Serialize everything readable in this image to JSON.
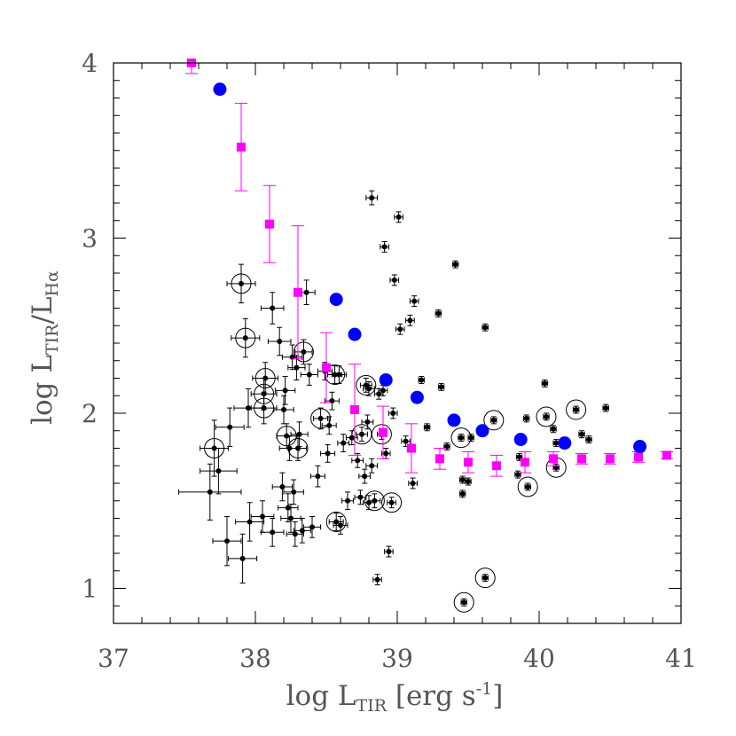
{
  "chart_data": {
    "type": "scatter",
    "title": "",
    "xlabel": {
      "main": "log L",
      "sub": "TIR",
      "suffix": " [erg s",
      "sup": "-1",
      "close": "]"
    },
    "ylabel": {
      "main": "log L",
      "sub1": "TIR",
      "mid": "/L",
      "sub2": "Hα"
    },
    "xlim": [
      37.0,
      41.0
    ],
    "ylim": [
      0.8,
      4.0
    ],
    "xticks": [
      37,
      38,
      39,
      40,
      41
    ],
    "yticks": [
      1,
      2,
      3,
      4
    ],
    "xtick_labels": [
      "37",
      "38",
      "39",
      "40",
      "41"
    ],
    "ytick_labels": [
      "1",
      "2",
      "3",
      "4"
    ],
    "grid": false,
    "colors": {
      "regions": "#000000",
      "binned": "#ff00ff",
      "model": "#0000ff"
    },
    "series": [
      {
        "kind": "regions",
        "marker": "small black dot with x/y error bars",
        "points": [
          {
            "x": 37.68,
            "y": 1.55,
            "xerr": 0.22,
            "yerr": 0.16
          },
          {
            "x": 37.71,
            "y": 1.8,
            "xerr": 0.1,
            "yerr": 0.16,
            "circled": true
          },
          {
            "x": 37.74,
            "y": 1.67,
            "xerr": 0.13,
            "yerr": 0.13
          },
          {
            "x": 37.8,
            "y": 1.27,
            "xerr": 0.1,
            "yerr": 0.14
          },
          {
            "x": 37.82,
            "y": 1.92,
            "xerr": 0.1,
            "yerr": 0.11
          },
          {
            "x": 37.91,
            "y": 1.17,
            "xerr": 0.1,
            "yerr": 0.14
          },
          {
            "x": 37.96,
            "y": 1.38,
            "xerr": 0.1,
            "yerr": 0.11
          },
          {
            "x": 37.95,
            "y": 2.03,
            "xerr": 0.1,
            "yerr": 0.11
          },
          {
            "x": 37.9,
            "y": 2.74,
            "xerr": 0.1,
            "yerr": 0.11,
            "circled": true
          },
          {
            "x": 37.93,
            "y": 2.43,
            "xerr": 0.1,
            "yerr": 0.11,
            "circled": true
          },
          {
            "x": 38.05,
            "y": 1.41,
            "xerr": 0.08,
            "yerr": 0.09
          },
          {
            "x": 38.06,
            "y": 2.03,
            "xerr": 0.09,
            "yerr": 0.09,
            "circled": true
          },
          {
            "x": 38.06,
            "y": 2.11,
            "xerr": 0.09,
            "yerr": 0.09,
            "circled": true
          },
          {
            "x": 38.07,
            "y": 2.2,
            "xerr": 0.09,
            "yerr": 0.09,
            "circled": true
          },
          {
            "x": 38.12,
            "y": 2.6,
            "xerr": 0.08,
            "yerr": 0.09
          },
          {
            "x": 38.12,
            "y": 1.32,
            "xerr": 0.08,
            "yerr": 0.08
          },
          {
            "x": 38.17,
            "y": 2.41,
            "xerr": 0.08,
            "yerr": 0.08
          },
          {
            "x": 38.19,
            "y": 1.58,
            "xerr": 0.07,
            "yerr": 0.08
          },
          {
            "x": 38.2,
            "y": 2.02,
            "xerr": 0.07,
            "yerr": 0.08
          },
          {
            "x": 38.21,
            "y": 2.13,
            "xerr": 0.07,
            "yerr": 0.08
          },
          {
            "x": 38.22,
            "y": 1.87,
            "xerr": 0.07,
            "yerr": 0.07,
            "circled": true
          },
          {
            "x": 38.23,
            "y": 1.46,
            "xerr": 0.07,
            "yerr": 0.08
          },
          {
            "x": 38.24,
            "y": 1.8,
            "xerr": 0.07,
            "yerr": 0.07
          },
          {
            "x": 38.25,
            "y": 1.4,
            "xerr": 0.07,
            "yerr": 0.08
          },
          {
            "x": 38.26,
            "y": 2.32,
            "xerr": 0.07,
            "yerr": 0.07
          },
          {
            "x": 38.27,
            "y": 1.55,
            "xerr": 0.07,
            "yerr": 0.07
          },
          {
            "x": 38.28,
            "y": 1.31,
            "xerr": 0.06,
            "yerr": 0.07
          },
          {
            "x": 38.29,
            "y": 2.26,
            "xerr": 0.06,
            "yerr": 0.07
          },
          {
            "x": 38.3,
            "y": 1.8,
            "xerr": 0.06,
            "yerr": 0.07,
            "circled": true
          },
          {
            "x": 38.31,
            "y": 1.88,
            "xerr": 0.06,
            "yerr": 0.07
          },
          {
            "x": 38.33,
            "y": 1.33,
            "xerr": 0.06,
            "yerr": 0.07
          },
          {
            "x": 38.34,
            "y": 2.35,
            "xerr": 0.06,
            "yerr": 0.07,
            "circled": true
          },
          {
            "x": 38.36,
            "y": 2.69,
            "xerr": 0.06,
            "yerr": 0.07
          },
          {
            "x": 38.38,
            "y": 2.22,
            "xerr": 0.06,
            "yerr": 0.06
          },
          {
            "x": 38.4,
            "y": 1.35,
            "xerr": 0.06,
            "yerr": 0.06
          },
          {
            "x": 38.44,
            "y": 1.64,
            "xerr": 0.05,
            "yerr": 0.06
          },
          {
            "x": 38.46,
            "y": 1.97,
            "xerr": 0.05,
            "yerr": 0.06,
            "circled": true
          },
          {
            "x": 38.49,
            "y": 2.24,
            "xerr": 0.05,
            "yerr": 0.05
          },
          {
            "x": 38.51,
            "y": 1.77,
            "xerr": 0.05,
            "yerr": 0.05
          },
          {
            "x": 38.52,
            "y": 1.93,
            "xerr": 0.05,
            "yerr": 0.05
          },
          {
            "x": 38.54,
            "y": 2.07,
            "xerr": 0.05,
            "yerr": 0.05
          },
          {
            "x": 38.56,
            "y": 2.22,
            "xerr": 0.05,
            "yerr": 0.05,
            "circled": true
          },
          {
            "x": 38.57,
            "y": 1.38,
            "xerr": 0.05,
            "yerr": 0.05,
            "circled": true
          },
          {
            "x": 38.59,
            "y": 2.22,
            "xerr": 0.05,
            "yerr": 0.05
          },
          {
            "x": 38.6,
            "y": 1.36,
            "xerr": 0.05,
            "yerr": 0.05
          },
          {
            "x": 38.62,
            "y": 1.83,
            "xerr": 0.04,
            "yerr": 0.05
          },
          {
            "x": 38.65,
            "y": 1.5,
            "xerr": 0.04,
            "yerr": 0.05
          },
          {
            "x": 38.68,
            "y": 1.86,
            "xerr": 0.04,
            "yerr": 0.04
          },
          {
            "x": 38.72,
            "y": 1.73,
            "xerr": 0.04,
            "yerr": 0.04
          },
          {
            "x": 38.74,
            "y": 1.52,
            "xerr": 0.04,
            "yerr": 0.04
          },
          {
            "x": 38.75,
            "y": 1.88,
            "xerr": 0.04,
            "yerr": 0.04,
            "circled": true
          },
          {
            "x": 38.77,
            "y": 1.64,
            "xerr": 0.04,
            "yerr": 0.04
          },
          {
            "x": 38.78,
            "y": 2.16,
            "xerr": 0.04,
            "yerr": 0.04,
            "circled": true
          },
          {
            "x": 38.79,
            "y": 1.95,
            "xerr": 0.04,
            "yerr": 0.04
          },
          {
            "x": 38.8,
            "y": 2.14,
            "xerr": 0.04,
            "yerr": 0.04
          },
          {
            "x": 38.8,
            "y": 1.49,
            "xerr": 0.04,
            "yerr": 0.04
          },
          {
            "x": 38.82,
            "y": 1.7,
            "xerr": 0.04,
            "yerr": 0.04
          },
          {
            "x": 38.82,
            "y": 3.23,
            "xerr": 0.04,
            "yerr": 0.04
          },
          {
            "x": 38.84,
            "y": 1.5,
            "xerr": 0.04,
            "yerr": 0.04,
            "circled": true
          },
          {
            "x": 38.86,
            "y": 1.05,
            "xerr": 0.03,
            "yerr": 0.03
          },
          {
            "x": 38.87,
            "y": 2.11,
            "xerr": 0.03,
            "yerr": 0.03
          },
          {
            "x": 38.89,
            "y": 1.88,
            "xerr": 0.03,
            "yerr": 0.03,
            "circled": true
          },
          {
            "x": 38.9,
            "y": 2.13,
            "xerr": 0.03,
            "yerr": 0.03
          },
          {
            "x": 38.91,
            "y": 2.95,
            "xerr": 0.03,
            "yerr": 0.03
          },
          {
            "x": 38.92,
            "y": 1.77,
            "xerr": 0.03,
            "yerr": 0.03
          },
          {
            "x": 38.94,
            "y": 1.21,
            "xerr": 0.03,
            "yerr": 0.03
          },
          {
            "x": 38.96,
            "y": 1.49,
            "xerr": 0.03,
            "yerr": 0.03,
            "circled": true
          },
          {
            "x": 38.97,
            "y": 2.0,
            "xerr": 0.03,
            "yerr": 0.03
          },
          {
            "x": 38.98,
            "y": 2.76,
            "xerr": 0.03,
            "yerr": 0.03
          },
          {
            "x": 39.01,
            "y": 3.12,
            "xerr": 0.03,
            "yerr": 0.03
          },
          {
            "x": 39.02,
            "y": 2.48,
            "xerr": 0.03,
            "yerr": 0.03
          },
          {
            "x": 39.06,
            "y": 1.84,
            "xerr": 0.03,
            "yerr": 0.03
          },
          {
            "x": 39.09,
            "y": 2.53,
            "xerr": 0.03,
            "yerr": 0.03
          },
          {
            "x": 39.11,
            "y": 1.6,
            "xerr": 0.03,
            "yerr": 0.03
          },
          {
            "x": 39.12,
            "y": 2.64,
            "xerr": 0.03,
            "yerr": 0.03
          },
          {
            "x": 39.17,
            "y": 2.19,
            "xerr": 0.02,
            "yerr": 0.02
          },
          {
            "x": 39.21,
            "y": 1.92,
            "xerr": 0.02,
            "yerr": 0.02
          },
          {
            "x": 39.29,
            "y": 2.57,
            "xerr": 0.02,
            "yerr": 0.02
          },
          {
            "x": 39.31,
            "y": 2.15,
            "xerr": 0.02,
            "yerr": 0.02
          },
          {
            "x": 39.35,
            "y": 1.81,
            "xerr": 0.02,
            "yerr": 0.02
          },
          {
            "x": 39.41,
            "y": 2.85,
            "xerr": 0.02,
            "yerr": 0.02
          },
          {
            "x": 39.45,
            "y": 1.86,
            "xerr": 0.02,
            "yerr": 0.02,
            "circled": true
          },
          {
            "x": 39.46,
            "y": 1.54,
            "xerr": 0.02,
            "yerr": 0.02
          },
          {
            "x": 39.46,
            "y": 1.62,
            "xerr": 0.02,
            "yerr": 0.02
          },
          {
            "x": 39.47,
            "y": 0.92,
            "xerr": 0.02,
            "yerr": 0.02,
            "circled": true
          },
          {
            "x": 39.5,
            "y": 1.61,
            "xerr": 0.02,
            "yerr": 0.02
          },
          {
            "x": 39.52,
            "y": 1.86,
            "xerr": 0.02,
            "yerr": 0.02
          },
          {
            "x": 39.62,
            "y": 1.06,
            "xerr": 0.02,
            "yerr": 0.02,
            "circled": true
          },
          {
            "x": 39.62,
            "y": 2.49,
            "xerr": 0.02,
            "yerr": 0.02
          },
          {
            "x": 39.68,
            "y": 1.96,
            "xerr": 0.02,
            "yerr": 0.02,
            "circled": true
          },
          {
            "x": 39.85,
            "y": 1.65,
            "xerr": 0.02,
            "yerr": 0.02
          },
          {
            "x": 39.86,
            "y": 1.75,
            "xerr": 0.02,
            "yerr": 0.02
          },
          {
            "x": 39.91,
            "y": 1.97,
            "xerr": 0.02,
            "yerr": 0.02
          },
          {
            "x": 39.92,
            "y": 1.58,
            "xerr": 0.02,
            "yerr": 0.02,
            "circled": true
          },
          {
            "x": 40.04,
            "y": 2.17,
            "xerr": 0.02,
            "yerr": 0.02
          },
          {
            "x": 40.05,
            "y": 1.98,
            "xerr": 0.02,
            "yerr": 0.02,
            "circled": true
          },
          {
            "x": 40.1,
            "y": 1.91,
            "xerr": 0.02,
            "yerr": 0.02
          },
          {
            "x": 40.12,
            "y": 1.69,
            "xerr": 0.02,
            "yerr": 0.02,
            "circled": true
          },
          {
            "x": 40.12,
            "y": 1.83,
            "xerr": 0.02,
            "yerr": 0.02
          },
          {
            "x": 40.26,
            "y": 2.02,
            "xerr": 0.02,
            "yerr": 0.02,
            "circled": true
          },
          {
            "x": 40.3,
            "y": 1.88,
            "xerr": 0.02,
            "yerr": 0.02
          },
          {
            "x": 40.35,
            "y": 1.85,
            "xerr": 0.02,
            "yerr": 0.02
          },
          {
            "x": 40.47,
            "y": 2.03,
            "xerr": 0.02,
            "yerr": 0.02
          }
        ]
      },
      {
        "kind": "binned",
        "marker": "magenta filled square with y error bars",
        "points": [
          {
            "x": 37.55,
            "y": 4.0,
            "yerr": 0.06
          },
          {
            "x": 37.9,
            "y": 3.52,
            "yerr": 0.25
          },
          {
            "x": 38.1,
            "y": 3.08,
            "yerr": 0.22
          },
          {
            "x": 38.3,
            "y": 2.69,
            "yerr": 0.38
          },
          {
            "x": 38.5,
            "y": 2.26,
            "yerr": 0.2
          },
          {
            "x": 38.7,
            "y": 2.02,
            "yerr": 0.26
          },
          {
            "x": 38.9,
            "y": 1.89,
            "yerr": 0.15
          },
          {
            "x": 39.1,
            "y": 1.8,
            "yerr": 0.14
          },
          {
            "x": 39.3,
            "y": 1.74,
            "yerr": 0.06
          },
          {
            "x": 39.5,
            "y": 1.72,
            "yerr": 0.06
          },
          {
            "x": 39.7,
            "y": 1.7,
            "yerr": 0.06
          },
          {
            "x": 39.9,
            "y": 1.72,
            "yerr": 0.06
          },
          {
            "x": 40.1,
            "y": 1.74,
            "yerr": 0.04
          },
          {
            "x": 40.3,
            "y": 1.74,
            "yerr": 0.03
          },
          {
            "x": 40.5,
            "y": 1.74,
            "yerr": 0.03
          },
          {
            "x": 40.7,
            "y": 1.75,
            "yerr": 0.03
          },
          {
            "x": 40.9,
            "y": 1.76,
            "yerr": 0.02
          }
        ]
      },
      {
        "kind": "model",
        "marker": "blue filled circle",
        "points": [
          {
            "x": 37.75,
            "y": 3.85
          },
          {
            "x": 38.57,
            "y": 2.65
          },
          {
            "x": 38.7,
            "y": 2.45
          },
          {
            "x": 38.92,
            "y": 2.19
          },
          {
            "x": 39.14,
            "y": 2.09
          },
          {
            "x": 39.4,
            "y": 1.96
          },
          {
            "x": 39.6,
            "y": 1.9
          },
          {
            "x": 39.87,
            "y": 1.85
          },
          {
            "x": 40.18,
            "y": 1.83
          },
          {
            "x": 40.71,
            "y": 1.81
          }
        ]
      }
    ]
  }
}
